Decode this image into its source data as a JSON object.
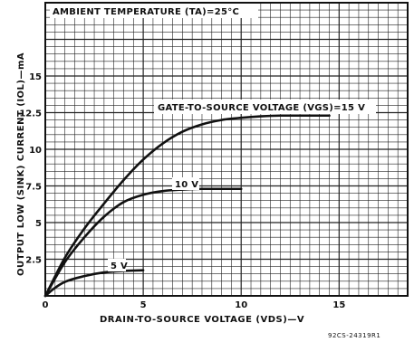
{
  "chart_data": {
    "type": "line",
    "title": "AMBIENT TEMPERATURE (TA)=25°C",
    "xlabel": "DRAIN-TO-SOURCE VOLTAGE (VDS)—V",
    "ylabel": "OUTPUT LOW (SINK) CURRENT (IOL)—mA",
    "xlim": [
      0,
      18.5
    ],
    "ylim": [
      0,
      20
    ],
    "x_ticks": [
      "0",
      "5",
      "10",
      "15"
    ],
    "y_ticks": [
      "2.5",
      "5",
      "7.5",
      "10",
      "12.5",
      "15"
    ],
    "grid": true,
    "series": [
      {
        "name": "GATE-TO-SOURCE VOLTAGE (VGS)=15 V",
        "x": [
          0,
          1,
          2,
          3,
          4,
          5,
          6,
          7,
          8,
          9,
          10,
          11,
          12,
          13,
          14.5
        ],
        "y": [
          0,
          2.6,
          4.6,
          6.3,
          7.9,
          9.3,
          10.4,
          11.2,
          11.7,
          12.0,
          12.15,
          12.25,
          12.3,
          12.3,
          12.3
        ]
      },
      {
        "name": "10 V",
        "x": [
          0,
          1,
          2,
          3,
          4,
          5,
          6,
          7,
          8,
          10
        ],
        "y": [
          0,
          2.3,
          4.0,
          5.4,
          6.4,
          6.9,
          7.15,
          7.25,
          7.3,
          7.3
        ]
      },
      {
        "name": "5 V",
        "x": [
          0,
          0.5,
          1,
          2,
          3,
          4,
          5
        ],
        "y": [
          0,
          0.55,
          0.95,
          1.35,
          1.6,
          1.7,
          1.75
        ]
      }
    ],
    "figure_code": "92CS-24319R1"
  }
}
